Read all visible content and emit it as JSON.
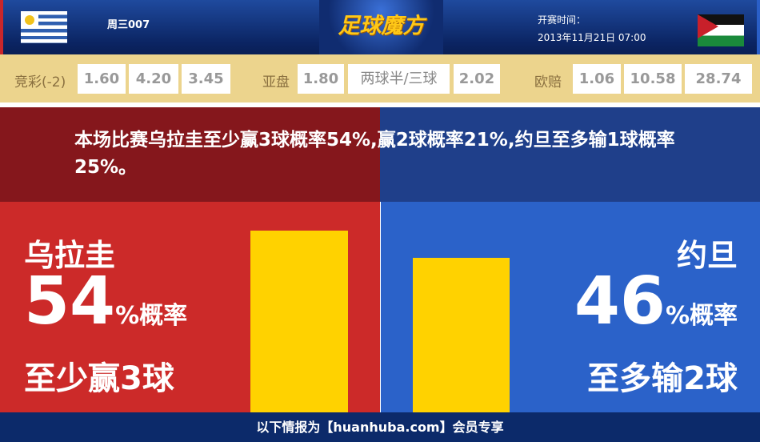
{
  "header": {
    "home_flag": "uruguay-flag",
    "away_flag": "jordan-flag",
    "match_code": "周三007",
    "logo": "足球魔方",
    "time_label": "开赛时间：",
    "time_value": "2013年11月21日 07:00"
  },
  "odds": {
    "jingcai": {
      "label": "竞彩(-2)",
      "values": [
        "1.60",
        "4.20",
        "3.45"
      ]
    },
    "yapan": {
      "label": "亚盘",
      "values": [
        "1.80",
        "两球半/三球",
        "2.02"
      ]
    },
    "oupei": {
      "label": "欧赔",
      "values": [
        "1.06",
        "10.58",
        "28.74"
      ]
    }
  },
  "summary": "本场比赛乌拉圭至少赢3球概率54%,赢2球概率21%,约旦至多输1球概率25%。",
  "home": {
    "team": "乌拉圭",
    "percent": "54",
    "percent_suffix": "%概率",
    "outcome": "至少赢3球",
    "value": 54
  },
  "away": {
    "team": "约旦",
    "percent": "46",
    "percent_suffix": "%概率",
    "outcome": "至多输2球",
    "value": 46
  },
  "colors": {
    "home": "#cc2a29",
    "away": "#2b62c9",
    "bar": "#ffd200"
  },
  "footer": "以下情报为【huanhuba.com】会员专享"
}
